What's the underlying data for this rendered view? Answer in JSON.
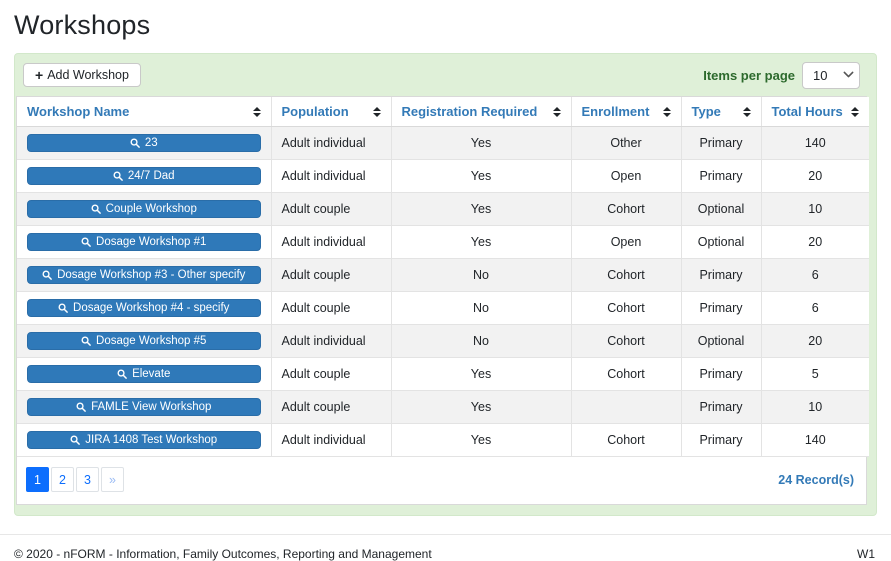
{
  "page": {
    "title": "Workshops",
    "footer_left": "© 2020 - nFORM - Information, Family Outcomes, Reporting and Management",
    "footer_right": "W1"
  },
  "toolbar": {
    "add_button_label": "Add Workshop",
    "plus_icon": "+",
    "items_per_page_label": "Items per page",
    "items_per_page_value": "10"
  },
  "table": {
    "columns": [
      "Workshop Name",
      "Population",
      "Registration Required",
      "Enrollment",
      "Type",
      "Total Hours"
    ],
    "rows": [
      {
        "name": "23",
        "population": "Adult individual",
        "registration_required": "Yes",
        "enrollment": "Other",
        "type": "Primary",
        "total_hours": "140"
      },
      {
        "name": "24/7 Dad",
        "population": "Adult individual",
        "registration_required": "Yes",
        "enrollment": "Open",
        "type": "Primary",
        "total_hours": "20"
      },
      {
        "name": "Couple Workshop",
        "population": "Adult couple",
        "registration_required": "Yes",
        "enrollment": "Cohort",
        "type": "Optional",
        "total_hours": "10"
      },
      {
        "name": "Dosage Workshop #1",
        "population": "Adult individual",
        "registration_required": "Yes",
        "enrollment": "Open",
        "type": "Optional",
        "total_hours": "20"
      },
      {
        "name": "Dosage Workshop #3 - Other specify",
        "population": "Adult couple",
        "registration_required": "No",
        "enrollment": "Cohort",
        "type": "Primary",
        "total_hours": "6"
      },
      {
        "name": "Dosage Workshop #4 - specify",
        "population": "Adult couple",
        "registration_required": "No",
        "enrollment": "Cohort",
        "type": "Primary",
        "total_hours": "6"
      },
      {
        "name": "Dosage Workshop #5",
        "population": "Adult individual",
        "registration_required": "No",
        "enrollment": "Cohort",
        "type": "Optional",
        "total_hours": "20"
      },
      {
        "name": "Elevate",
        "population": "Adult couple",
        "registration_required": "Yes",
        "enrollment": "Cohort",
        "type": "Primary",
        "total_hours": "5"
      },
      {
        "name": "FAMLE View Workshop",
        "population": "Adult couple",
        "registration_required": "Yes",
        "enrollment": "",
        "type": "Primary",
        "total_hours": "10"
      },
      {
        "name": "JIRA 1408 Test Workshop",
        "population": "Adult individual",
        "registration_required": "Yes",
        "enrollment": "Cohort",
        "type": "Primary",
        "total_hours": "140"
      }
    ]
  },
  "pagination": {
    "pages": [
      "1",
      "2",
      "3"
    ],
    "active_page": "1",
    "next_label": "»",
    "records_text": "24 Record(s)"
  },
  "colors": {
    "accent_blue": "#2f79b9",
    "header_blue": "#337ab7",
    "panel_green": "#dff0d8",
    "label_green": "#2d6a2d",
    "pagination_blue": "#0d6efd",
    "stripe_gray": "#f2f2f2"
  }
}
